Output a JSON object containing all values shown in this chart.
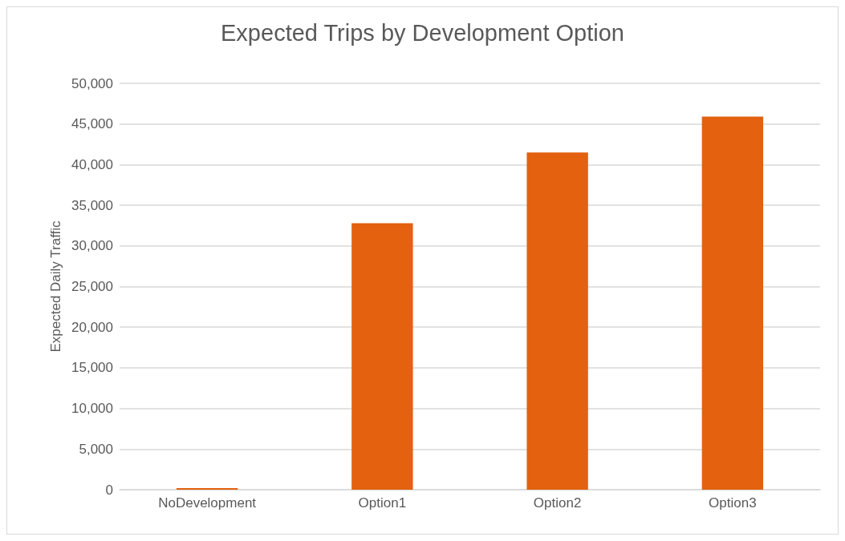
{
  "chart_data": {
    "type": "bar",
    "title": "Expected Trips by Development Option",
    "ylabel": "Expected Daily Traffic",
    "categories": [
      "NoDevelopment",
      "Option1",
      "Option2",
      "Option3"
    ],
    "values": [
      200,
      32800,
      41500,
      45900
    ],
    "color": "#e3610f",
    "ylim": [
      0,
      50000
    ],
    "yticks": [
      0,
      {
        "value": 5000,
        "label": "5,000"
      },
      {
        "value": 10000,
        "label": "10,000"
      },
      {
        "value": 15000,
        "label": "15,000"
      },
      {
        "value": 20000,
        "label": "20,000"
      },
      {
        "value": 25000,
        "label": "25,000"
      },
      {
        "value": 30000,
        "label": "30,000"
      },
      {
        "value": 35000,
        "label": "35,000"
      },
      {
        "value": 40000,
        "label": "40,000"
      },
      {
        "value": 45000,
        "label": "45,000"
      },
      {
        "value": 50000,
        "label": "50,000"
      }
    ],
    "grid": "y"
  }
}
